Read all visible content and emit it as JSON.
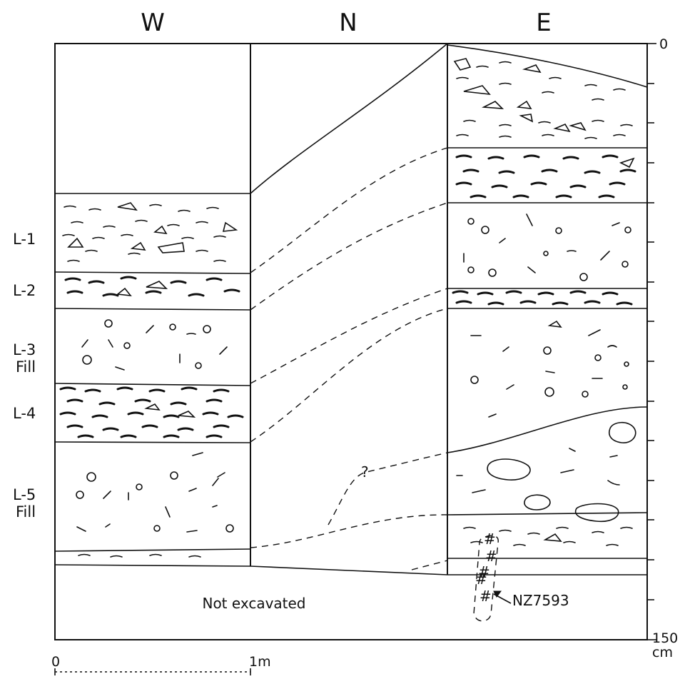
{
  "walls": [
    "W",
    "N",
    "E"
  ],
  "layers": {
    "l1": "L-1",
    "l2": "L-2",
    "l3a": "L-3",
    "l3b": "Fill",
    "l4": "L-4",
    "l5a": "L-5",
    "l5b": "Fill"
  },
  "not_excavated": "Not excavated",
  "question_mark": "?",
  "sample_label": "NZ7593",
  "depth_scale": {
    "top": "0",
    "bottom": "150",
    "unit": "cm"
  },
  "horizontal_scale": {
    "start": "0",
    "end": "1m"
  }
}
